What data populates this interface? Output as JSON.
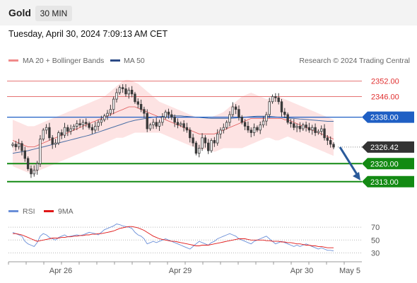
{
  "header": {
    "symbol": "Gold",
    "timeframe": "30 MIN"
  },
  "datetime": "Tuesday, April 30, 2024 7:09:13 AM CET",
  "legend": {
    "ma20": "MA 20 + Bollinger Bands",
    "ma50": "MA 50",
    "credit": "Research © 2024 Trading Central",
    "rsi": "RSI",
    "ma9": "9MA"
  },
  "colors": {
    "bollinger_fill": "#fde3e3",
    "ma20": "#e05a5a",
    "ma50": "#4a6fa5",
    "resistance": "#e57373",
    "pivot": "#1f5fc4",
    "support": "#138a13",
    "last_price": "#333333",
    "arrow": "#2a5a9a",
    "rsi": "#6a8fd8",
    "rsi_ma": "#e01818"
  },
  "chart_data": [
    {
      "type": "candlestick",
      "instrument": "Gold",
      "timeframe": "30 MIN",
      "ylim": [
        2308,
        2356
      ],
      "x_ticks": [
        "Apr 26",
        "Apr 29",
        "Apr 30",
        "May 5"
      ],
      "last_price": 2326.42,
      "levels": [
        {
          "label": "2352.00",
          "value": 2352.0,
          "kind": "resistance"
        },
        {
          "label": "2346.00",
          "value": 2346.0,
          "kind": "resistance"
        },
        {
          "label": "2338.00",
          "value": 2338.0,
          "kind": "pivot"
        },
        {
          "label": "2320.00",
          "value": 2320.0,
          "kind": "support"
        },
        {
          "label": "2313.00",
          "value": 2313.0,
          "kind": "support"
        }
      ],
      "last_price_label": "2326.42",
      "projection": {
        "from": 2326.4,
        "to": 2313.5
      },
      "close_series": [
        2327.5,
        2326.5,
        2327.8,
        2325.0,
        2322.0,
        2318.0,
        2316.0,
        2317.5,
        2320.0,
        2329.5,
        2333.0,
        2334.0,
        2330.0,
        2327.5,
        2328.0,
        2332.0,
        2331.0,
        2334.0,
        2332.5,
        2333.5,
        2334.5,
        2335.5,
        2335.0,
        2336.0,
        2335.5,
        2334.0,
        2333.0,
        2334.5,
        2336.0,
        2337.0,
        2338.5,
        2339.5,
        2341.0,
        2345.0,
        2347.5,
        2349.5,
        2349.0,
        2347.0,
        2348.5,
        2347.0,
        2344.0,
        2343.0,
        2341.0,
        2339.5,
        2333.5,
        2335.0,
        2336.0,
        2334.5,
        2336.0,
        2338.0,
        2340.0,
        2339.0,
        2338.0,
        2336.0,
        2335.0,
        2335.5,
        2334.0,
        2333.0,
        2330.0,
        2328.0,
        2324.0,
        2326.0,
        2330.0,
        2328.0,
        2325.0,
        2329.0,
        2328.0,
        2331.5,
        2333.0,
        2334.0,
        2336.0,
        2339.0,
        2342.0,
        2341.0,
        2338.0,
        2336.0,
        2334.5,
        2333.0,
        2332.0,
        2334.0,
        2333.0,
        2335.0,
        2336.5,
        2339.0,
        2344.0,
        2346.0,
        2345.5,
        2344.0,
        2340.0,
        2339.0,
        2336.0,
        2335.5,
        2334.0,
        2334.5,
        2333.5,
        2335.0,
        2334.0,
        2333.0,
        2334.0,
        2332.0,
        2332.5,
        2333.5,
        2330.0,
        2329.0,
        2327.5,
        2326.4
      ],
      "ma20": [
        2329,
        2328.5,
        2328,
        2327.5,
        2327,
        2326.5,
        2326.5,
        2326.5,
        2327,
        2327.5,
        2328,
        2328.5,
        2329,
        2329.5,
        2330,
        2330.5,
        2331,
        2331.5,
        2332,
        2332.5,
        2333,
        2333.5,
        2334,
        2334.5,
        2335,
        2335.5,
        2336,
        2336.5,
        2337,
        2337.5,
        2338,
        2338.5,
        2339,
        2339.5,
        2340,
        2340.5,
        2341,
        2341.5,
        2342,
        2342,
        2342,
        2341.5,
        2341,
        2340.5,
        2340,
        2339.5,
        2339,
        2338.5,
        2338,
        2337.5,
        2337,
        2336.5,
        2336,
        2335.5,
        2335,
        2334.5,
        2334,
        2333.5,
        2333,
        2332.5,
        2332,
        2331.5,
        2331.5,
        2331.5,
        2331.5,
        2331.5,
        2331.5,
        2332,
        2332.5,
        2333,
        2333.5,
        2334,
        2334.5,
        2335,
        2335.5,
        2336,
        2336.5,
        2337,
        2337.5,
        2337.5,
        2337.5,
        2337.5,
        2337.5,
        2337.5,
        2337.5,
        2337.5,
        2337.5,
        2337.5,
        2337.5,
        2337,
        2337,
        2336.5,
        2336,
        2335.5,
        2335,
        2334.5,
        2334,
        2333.5,
        2333,
        2332.5,
        2332,
        2331.5,
        2331,
        2330.5,
        2330,
        2329.5
      ],
      "ma50": [
        2324,
        2324.2,
        2324.4,
        2324.6,
        2324.8,
        2325,
        2325.3,
        2325.6,
        2325.9,
        2326.2,
        2326.5,
        2326.8,
        2327.1,
        2327.4,
        2327.7,
        2328,
        2328.3,
        2328.6,
        2328.9,
        2329.2,
        2329.5,
        2329.8,
        2330.1,
        2330.4,
        2330.7,
        2331,
        2331.4,
        2331.8,
        2332.2,
        2332.6,
        2333,
        2333.4,
        2333.8,
        2334.2,
        2334.6,
        2335,
        2335.4,
        2335.8,
        2336.2,
        2336.5,
        2336.8,
        2337,
        2337.2,
        2337.4,
        2337.6,
        2337.8,
        2338,
        2338.1,
        2338.2,
        2338.3,
        2338.4,
        2338.5,
        2338.5,
        2338.5,
        2338.5,
        2338.5,
        2338.4,
        2338.3,
        2338.2,
        2338.1,
        2338,
        2337.9,
        2337.8,
        2337.7,
        2337.6,
        2337.5,
        2337.5,
        2337.5,
        2337.5,
        2337.5,
        2337.5,
        2337.5,
        2337.6,
        2337.7,
        2337.8,
        2337.9,
        2338,
        2338.1,
        2338.2,
        2338.3,
        2338.4,
        2338.4,
        2338.4,
        2338.4,
        2338.3,
        2338.2,
        2338.1,
        2338,
        2337.9,
        2337.8,
        2337.7,
        2337.6,
        2337.5,
        2337.4,
        2337.3,
        2337.2,
        2337.1,
        2337,
        2336.9,
        2336.8,
        2336.7,
        2336.6,
        2336.5,
        2336.4,
        2336.4,
        2336.4
      ],
      "bollinger_upper": [
        2337,
        2336.5,
        2336,
        2335.5,
        2335,
        2334.5,
        2334.5,
        2334.5,
        2335,
        2335.5,
        2336,
        2336.5,
        2337,
        2337.5,
        2338,
        2338.5,
        2339,
        2339.5,
        2340,
        2340.5,
        2341,
        2341.5,
        2342,
        2342.5,
        2343,
        2343.5,
        2344,
        2344.5,
        2345,
        2345.5,
        2346,
        2347,
        2348,
        2349,
        2350,
        2351,
        2352,
        2352.5,
        2352.5,
        2352,
        2351.5,
        2351,
        2350,
        2349,
        2348,
        2347,
        2346,
        2345,
        2344,
        2343.5,
        2343,
        2342.5,
        2342,
        2341.5,
        2341,
        2340.5,
        2340,
        2339.5,
        2339,
        2338.5,
        2338,
        2337.5,
        2337.5,
        2337.5,
        2337.5,
        2338,
        2338.5,
        2339,
        2339.5,
        2340,
        2341,
        2342,
        2343,
        2344,
        2345,
        2346,
        2346.5,
        2347,
        2347.5,
        2347,
        2346.5,
        2346,
        2345.5,
        2345,
        2345,
        2345.5,
        2346,
        2346,
        2345.5,
        2345,
        2344.5,
        2344,
        2343.5,
        2343,
        2342.5,
        2342,
        2341.5,
        2341,
        2340.5,
        2340,
        2339.5,
        2339,
        2338.5,
        2338,
        2337.5,
        2337
      ],
      "bollinger_lower": [
        2319,
        2318.5,
        2318,
        2317.5,
        2317,
        2316.5,
        2316.5,
        2316.5,
        2317,
        2317.5,
        2318,
        2318.5,
        2319,
        2319.5,
        2320,
        2320.5,
        2321,
        2321.5,
        2322,
        2322.5,
        2323,
        2323.5,
        2324,
        2324.5,
        2325,
        2325.5,
        2326,
        2326.5,
        2327,
        2327.5,
        2328,
        2328.5,
        2329,
        2329.5,
        2330,
        2330,
        2330,
        2330.5,
        2331,
        2331.5,
        2332,
        2332,
        2332,
        2332,
        2332,
        2332,
        2332,
        2332,
        2332,
        2331.5,
        2331,
        2330.5,
        2330,
        2329.5,
        2329,
        2328.5,
        2328,
        2327.5,
        2327,
        2326.5,
        2326,
        2325.5,
        2325.5,
        2325.5,
        2325.5,
        2325,
        2324.5,
        2325,
        2325.5,
        2326,
        2326,
        2326,
        2326,
        2326,
        2326,
        2326,
        2326.5,
        2327,
        2327.5,
        2328,
        2328.5,
        2329,
        2329.5,
        2330,
        2330,
        2329.5,
        2329,
        2329,
        2329.5,
        2330,
        2330.5,
        2330,
        2329.5,
        2329,
        2328.5,
        2328,
        2327.5,
        2327,
        2326.5,
        2326,
        2325.5,
        2325,
        2324.5,
        2324,
        2323.5,
        2323
      ]
    },
    {
      "type": "line",
      "name": "RSI",
      "ylim": [
        25,
        80
      ],
      "y_ticks": [
        70,
        50,
        30
      ],
      "series": [
        {
          "name": "RSI",
          "values": [
            62,
            60,
            58,
            56,
            48,
            44,
            42,
            40,
            46,
            56,
            60,
            58,
            54,
            52,
            50,
            54,
            56,
            58,
            55,
            56,
            57,
            58,
            57,
            58,
            60,
            62,
            61,
            60,
            58,
            62,
            66,
            68,
            70,
            72,
            75,
            74,
            72,
            71,
            70,
            68,
            62,
            58,
            56,
            52,
            44,
            46,
            48,
            46,
            48,
            50,
            52,
            50,
            48,
            46,
            44,
            42,
            40,
            38,
            36,
            40,
            44,
            48,
            46,
            44,
            42,
            46,
            48,
            52,
            54,
            56,
            58,
            60,
            58,
            56,
            52,
            50,
            48,
            46,
            44,
            48,
            50,
            52,
            54,
            56,
            52,
            48,
            44,
            46,
            48,
            46,
            44,
            42,
            40,
            42,
            40,
            42,
            44,
            42,
            40,
            38,
            36,
            38,
            36,
            34,
            34,
            33
          ]
        },
        {
          "name": "9MA",
          "values": [
            60,
            60,
            59,
            58,
            56,
            54,
            52,
            50,
            48,
            49,
            50,
            51,
            52,
            53,
            53,
            53,
            54,
            54,
            55,
            55,
            56,
            56,
            57,
            57,
            58,
            58,
            59,
            59,
            60,
            60,
            61,
            62,
            63,
            64,
            66,
            68,
            69,
            70,
            71,
            71,
            70,
            69,
            67,
            65,
            62,
            59,
            56,
            54,
            52,
            51,
            50,
            49,
            48,
            48,
            47,
            46,
            45,
            44,
            43,
            42,
            41,
            41,
            42,
            42,
            42,
            43,
            44,
            45,
            46,
            47,
            48,
            49,
            50,
            51,
            52,
            52,
            52,
            51,
            50,
            50,
            50,
            50,
            50,
            49,
            49,
            48,
            48,
            48,
            47,
            47,
            46,
            46,
            45,
            44,
            44,
            43,
            42,
            42,
            41,
            41,
            40,
            40,
            39,
            38,
            38,
            38
          ]
        }
      ]
    }
  ]
}
